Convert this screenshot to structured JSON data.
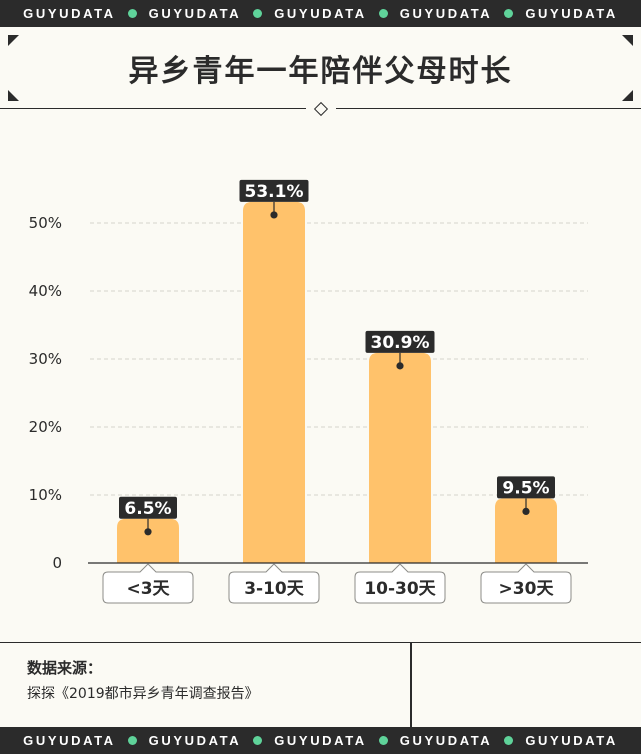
{
  "banner": {
    "words": [
      "GUYUDATA",
      "GUYUDATA",
      "GUYUDATA",
      "GUYUDATA",
      "GUYUDATA"
    ]
  },
  "colors": {
    "bar": "#ffc26b",
    "ink": "#2b2b2b",
    "background": "#fbfaf4",
    "accent_dot": "#5fd39a"
  },
  "chart_data": {
    "type": "bar",
    "title": "异乡青年一年陪伴父母时长",
    "categories": [
      "<3天",
      "3-10天",
      "10-30天",
      ">30天"
    ],
    "values": [
      6.5,
      53.1,
      30.9,
      9.5
    ],
    "value_labels": [
      "6.5%",
      "53.1%",
      "30.9%",
      "9.5%"
    ],
    "y_ticks": [
      0,
      10,
      20,
      30,
      40,
      50
    ],
    "y_tick_labels": [
      "0",
      "10%",
      "20%",
      "30%",
      "40%",
      "50%"
    ],
    "ylim": [
      0,
      50
    ],
    "grid": true,
    "xlabel": "",
    "ylabel": ""
  },
  "footer": {
    "source_label": "数据来源：",
    "source_text": "探探《2019都市异乡青年调查报告》"
  }
}
